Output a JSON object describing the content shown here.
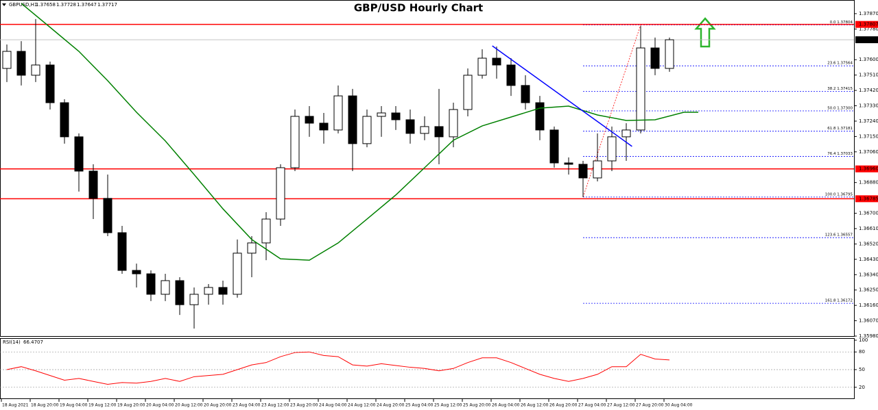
{
  "chart_data": {
    "type": "candlestick",
    "title": "GBP/USD Hourly Chart",
    "header": {
      "symbol": "GBPUSD,H1",
      "open": 1.37658,
      "high": 1.37728,
      "low": 1.37647,
      "close": 1.37717
    },
    "x_labels": [
      "18 Aug 2021",
      "18 Aug 20:00",
      "19 Aug 04:00",
      "19 Aug 12:00",
      "19 Aug 20:00",
      "20 Aug 04:00",
      "20 Aug 12:00",
      "20 Aug 20:00",
      "23 Aug 04:00",
      "23 Aug 12:00",
      "23 Aug 20:00",
      "24 Aug 04:00",
      "24 Aug 12:00",
      "24 Aug 20:00",
      "25 Aug 04:00",
      "25 Aug 12:00",
      "25 Aug 20:00",
      "26 Aug 04:00",
      "26 Aug 12:00",
      "26 Aug 20:00",
      "27 Aug 04:00",
      "27 Aug 12:00",
      "27 Aug 20:00",
      "30 Aug 04:00"
    ],
    "open": [
      1.37549,
      1.37649,
      1.37509,
      1.37569,
      1.37348,
      1.37148,
      1.36947,
      1.36787,
      1.36586,
      1.36365,
      1.36345,
      1.36225,
      1.36305,
      1.36164,
      1.36225,
      1.36265,
      1.36225,
      1.36466,
      1.36526,
      1.36666,
      1.36967,
      1.37268,
      1.37228,
      1.37188,
      1.37388,
      1.37108,
      1.37268,
      1.37288,
      1.37248,
      1.37168,
      1.37208,
      1.37148,
      1.37308,
      1.37509,
      1.37609,
      1.37569,
      1.37449,
      1.37348,
      1.37188,
      1.36995,
      1.36987,
      1.36907,
      1.37007,
      1.37148,
      1.37188,
      1.37669,
      1.37549
    ],
    "high": [
      1.37689,
      1.37709,
      1.37838,
      1.37589,
      1.37368,
      1.37168,
      1.36987,
      1.36927,
      1.36626,
      1.36405,
      1.36365,
      1.36345,
      1.36325,
      1.36265,
      1.36285,
      1.36305,
      1.36546,
      1.36566,
      1.36706,
      1.36987,
      1.37308,
      1.37328,
      1.37288,
      1.37449,
      1.37429,
      1.37308,
      1.37328,
      1.37328,
      1.37308,
      1.37268,
      1.37429,
      1.37348,
      1.37549,
      1.37661,
      1.37677,
      1.37609,
      1.37509,
      1.37388,
      1.37208,
      1.37027,
      1.37007,
      1.37168,
      1.37208,
      1.37228,
      1.37798,
      1.3773,
      1.3773
    ],
    "low": [
      1.37469,
      1.37449,
      1.37469,
      1.37308,
      1.37108,
      1.36827,
      1.36666,
      1.36566,
      1.36345,
      1.36265,
      1.36185,
      1.36185,
      1.36104,
      1.36024,
      1.36164,
      1.36164,
      1.36205,
      1.36325,
      1.36425,
      1.36626,
      1.36947,
      1.37148,
      1.37108,
      1.37168,
      1.36947,
      1.37087,
      1.37148,
      1.37188,
      1.37108,
      1.37128,
      1.36987,
      1.37087,
      1.37268,
      1.37489,
      1.37489,
      1.37388,
      1.37308,
      1.37128,
      1.36967,
      1.36927,
      1.36795,
      1.36887,
      1.36947,
      1.37007,
      1.37168,
      1.37509,
      1.37529
    ],
    "close": [
      1.37649,
      1.37509,
      1.37569,
      1.37348,
      1.37148,
      1.36947,
      1.36787,
      1.36586,
      1.36365,
      1.36345,
      1.36225,
      1.36305,
      1.36164,
      1.36225,
      1.36265,
      1.36225,
      1.36466,
      1.36526,
      1.36666,
      1.36967,
      1.37268,
      1.37228,
      1.37188,
      1.37388,
      1.37108,
      1.37268,
      1.37288,
      1.37248,
      1.37168,
      1.37208,
      1.37148,
      1.37308,
      1.37509,
      1.37609,
      1.37569,
      1.37449,
      1.37348,
      1.37188,
      1.36995,
      1.36987,
      1.36907,
      1.37007,
      1.37148,
      1.37188,
      1.37669,
      1.37549,
      1.37717
    ],
    "ylim": [
      1.35976,
      1.3795
    ],
    "yticks": [
      {
        "value": 1.3787,
        "label": "1.37870"
      },
      {
        "value": 1.3778,
        "label": "1.37780"
      },
      {
        "value": 1.376,
        "label": "1.37600"
      },
      {
        "value": 1.3751,
        "label": "1.37510"
      },
      {
        "value": 1.3742,
        "label": "1.37420"
      },
      {
        "value": 1.3733,
        "label": "1.37330"
      },
      {
        "value": 1.3724,
        "label": "1.37240"
      },
      {
        "value": 1.3715,
        "label": "1.37150"
      },
      {
        "value": 1.3706,
        "label": "1.37060"
      },
      {
        "value": 1.3688,
        "label": "1.36880"
      },
      {
        "value": 1.367,
        "label": "1.36700"
      },
      {
        "value": 1.3661,
        "label": "1.36610"
      },
      {
        "value": 1.3652,
        "label": "1.36520"
      },
      {
        "value": 1.3643,
        "label": "1.36430"
      },
      {
        "value": 1.3634,
        "label": "1.36340"
      },
      {
        "value": 1.3625,
        "label": "1.36250"
      },
      {
        "value": 1.3616,
        "label": "1.36160"
      },
      {
        "value": 1.3607,
        "label": "1.36070"
      },
      {
        "value": 1.3598,
        "label": "1.35980"
      }
    ],
    "moving_average": {
      "color": "#008000",
      "x": [
        1,
        3,
        5,
        7,
        9,
        11,
        13,
        15,
        17,
        19,
        21,
        23,
        25,
        27,
        29,
        31,
        33,
        35,
        37,
        39,
        41,
        43,
        45,
        47,
        48
      ],
      "values": [
        1.3793,
        1.3779,
        1.37649,
        1.37477,
        1.37292,
        1.37124,
        1.36927,
        1.36726,
        1.36546,
        1.36433,
        1.36425,
        1.36526,
        1.36666,
        1.36807,
        1.36967,
        1.37128,
        1.37212,
        1.37264,
        1.37316,
        1.37328,
        1.37276,
        1.37244,
        1.37248,
        1.37292,
        1.37292
      ]
    },
    "trendline": {
      "color": "#0000ff",
      "x": [
        33.7,
        43.4
      ],
      "values": [
        1.37681,
        1.37092
      ]
    },
    "levels": [
      1.37807,
      {
        "value": 1.3696,
        "label": "1.36960"
      },
      1.36785
    ],
    "level_color": "#ff0000",
    "fib_x": [
      40,
      44
    ],
    "fib_levels": [
      {
        "value": 1.37804,
        "label": "0.0 1.37804"
      },
      {
        "value": 1.37564,
        "label": "23.6 1.37564"
      },
      {
        "value": 1.37415,
        "label": "38.2 1.37415"
      },
      {
        "value": 1.373,
        "label": "50.0 1.37300"
      },
      {
        "value": 1.37181,
        "label": "61.8 1.37181"
      },
      {
        "value": 1.37033,
        "label": "76.4 1.37033"
      },
      {
        "value": 1.36795,
        "label": "100.0 1.36795"
      },
      {
        "value": 1.36557,
        "label": "123.6 1.36557"
      },
      {
        "value": 1.36172,
        "label": "161.8 1.36172"
      }
    ],
    "rsi": {
      "name": "RSI(14)",
      "color": "#ff0000",
      "ylim": [
        0,
        100
      ],
      "yticks": [
        100,
        80,
        50,
        20
      ],
      "values": [
        50,
        55,
        48,
        40,
        32,
        35,
        30,
        25,
        28,
        27,
        30,
        35,
        30,
        38,
        40,
        42,
        50,
        58,
        62,
        72,
        79,
        80,
        74,
        72,
        58,
        56,
        60,
        57,
        54,
        52,
        48,
        52,
        62,
        70,
        70,
        62,
        52,
        42,
        35,
        30,
        35,
        42,
        55,
        55,
        76,
        68,
        66.4707
      ]
    }
  }
}
